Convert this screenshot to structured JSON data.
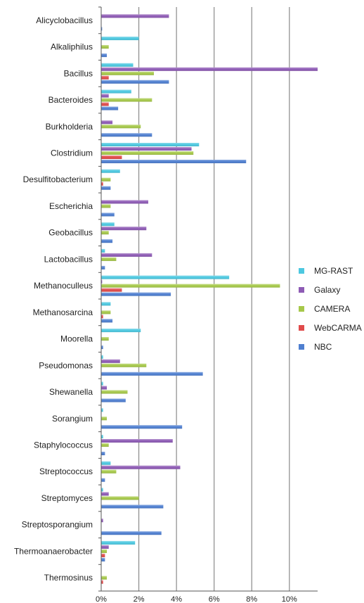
{
  "chart_data": {
    "type": "bar",
    "orientation": "horizontal",
    "categories": [
      "Alicyclobacillus",
      "Alkaliphilus",
      "Bacillus",
      "Bacteroides",
      "Burkholderia",
      "Clostridium",
      "Desulfitobacterium",
      "Escherichia",
      "Geobacillus",
      "Lactobacillus",
      "Methanoculleus",
      "Methanosarcina",
      "Moorella",
      "Pseudomonas",
      "Shewanella",
      "Sorangium",
      "Staphylococcus",
      "Streptococcus",
      "Streptomyces",
      "Streptosporangium",
      "Thermoanaerobacter",
      "Thermosinus"
    ],
    "series": [
      {
        "name": "MG-RAST",
        "color": "#4dc8e0",
        "values": [
          0,
          2.0,
          1.7,
          1.6,
          0,
          5.2,
          1.0,
          0,
          0.7,
          0.2,
          6.8,
          0.5,
          2.1,
          0.1,
          0.1,
          0.1,
          0.1,
          0.5,
          0.1,
          0,
          1.8,
          0
        ]
      },
      {
        "name": "Galaxy",
        "color": "#8e5bb5",
        "values": [
          3.6,
          0,
          11.5,
          0.4,
          0.6,
          4.8,
          0,
          2.5,
          2.4,
          2.7,
          0.05,
          0,
          0,
          1.0,
          0.3,
          0,
          3.8,
          4.2,
          0.4,
          0.1,
          0.4,
          0
        ]
      },
      {
        "name": "CAMERA",
        "color": "#a6c84a",
        "values": [
          0,
          0.4,
          2.8,
          2.7,
          2.1,
          4.9,
          0.5,
          0.5,
          0.4,
          0.8,
          9.5,
          0.5,
          0.4,
          2.4,
          1.4,
          0.3,
          0.4,
          0.8,
          2.0,
          0,
          0.3,
          0.3
        ]
      },
      {
        "name": "WebCARMA",
        "color": "#e04b4b",
        "values": [
          0,
          0,
          0.4,
          0.4,
          0,
          1.1,
          0.1,
          0,
          0,
          0,
          1.1,
          0.1,
          0,
          0,
          0,
          0,
          0,
          0,
          0,
          0,
          0.2,
          0.1
        ]
      },
      {
        "name": "NBC",
        "color": "#4f7fd0",
        "values": [
          0.05,
          0.3,
          3.6,
          0.9,
          2.7,
          7.7,
          0.5,
          0.7,
          0.6,
          0.2,
          3.7,
          0.6,
          0.1,
          5.4,
          1.3,
          4.3,
          0.2,
          0.2,
          3.3,
          3.2,
          0.2,
          0
        ]
      }
    ],
    "xlim": [
      0,
      11.5
    ],
    "xticks": [
      "0%",
      "2%",
      "4%",
      "6%",
      "8%",
      "10%"
    ],
    "xtick_values": [
      0,
      2,
      4,
      6,
      8,
      10
    ],
    "grid": true,
    "legend_position": "right",
    "legend_order": [
      "MG-RAST",
      "Galaxy",
      "CAMERA",
      "WebCARMA",
      "NBC"
    ]
  }
}
